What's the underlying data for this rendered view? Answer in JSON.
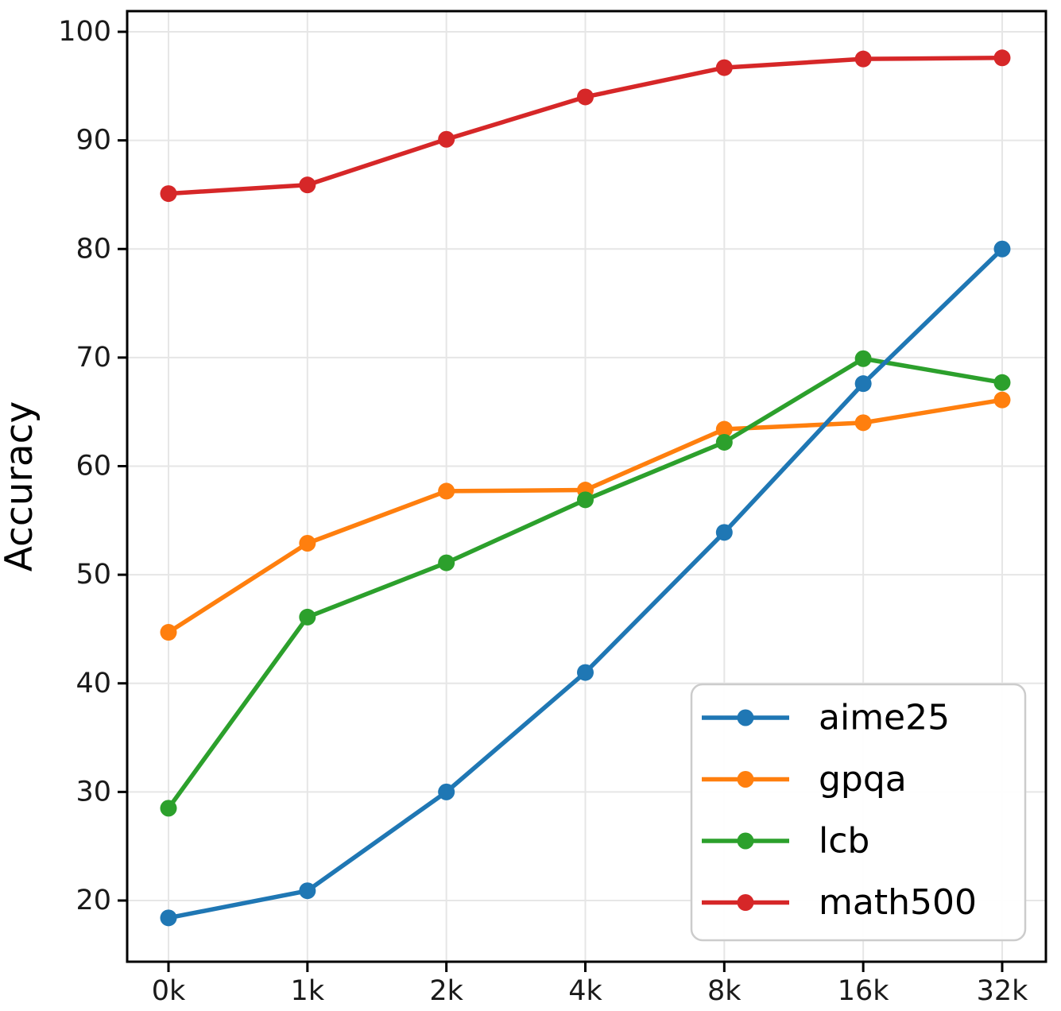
{
  "chart_data": {
    "type": "line",
    "title": "",
    "xlabel": "",
    "ylabel": "Accuracy",
    "categories": [
      "0k",
      "1k",
      "2k",
      "4k",
      "8k",
      "16k",
      "32k"
    ],
    "y_ticks": [
      20,
      30,
      40,
      50,
      60,
      70,
      80,
      90,
      100
    ],
    "ylim": [
      14,
      102
    ],
    "grid": true,
    "legend_position": "lower right",
    "series": [
      {
        "name": "aime25",
        "color": "#1f77b4",
        "values": [
          18.4,
          20.9,
          30.0,
          41.0,
          53.9,
          67.6,
          80.0
        ]
      },
      {
        "name": "gpqa",
        "color": "#ff7f0e",
        "values": [
          44.7,
          52.9,
          57.7,
          57.8,
          63.4,
          64.0,
          66.1
        ]
      },
      {
        "name": "lcb",
        "color": "#2ca02c",
        "values": [
          28.5,
          46.1,
          51.1,
          56.9,
          62.2,
          69.9,
          67.7
        ]
      },
      {
        "name": "math500",
        "color": "#d62728",
        "values": [
          85.1,
          85.9,
          90.1,
          94.0,
          96.7,
          97.5,
          97.6
        ]
      }
    ],
    "style": {
      "axis_color": "#000000",
      "tick_label_color": "#1a1a1a",
      "grid_color": "#e6e6e6",
      "legend_border_color": "#cccccc",
      "legend_background": "#ffffff"
    }
  }
}
